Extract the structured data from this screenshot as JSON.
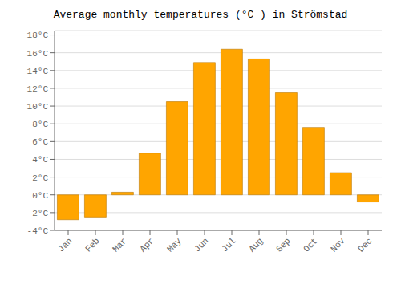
{
  "chart_data": {
    "type": "bar",
    "title": "Average monthly temperatures (°C ) in Strömstad",
    "categories": [
      "Jan",
      "Feb",
      "Mar",
      "Apr",
      "May",
      "Jun",
      "Jul",
      "Aug",
      "Sep",
      "Oct",
      "Nov",
      "Dec"
    ],
    "values": [
      -2.8,
      -2.5,
      0.3,
      4.7,
      10.5,
      14.9,
      16.4,
      15.3,
      11.5,
      7.6,
      2.5,
      -0.8
    ],
    "color": "#FFA500",
    "ylim": [
      -4,
      18.5
    ],
    "yticks": [
      {
        "value": -4,
        "label": "-4°C"
      },
      {
        "value": -2,
        "label": "-2°C"
      },
      {
        "value": 0,
        "label": "0°C"
      },
      {
        "value": 2,
        "label": "2°C"
      },
      {
        "value": 4,
        "label": "4°C"
      },
      {
        "value": 6,
        "label": "6°C"
      },
      {
        "value": 8,
        "label": "8°C"
      },
      {
        "value": 10,
        "label": "10°C"
      },
      {
        "value": 12,
        "label": "12°C"
      },
      {
        "value": 14,
        "label": "14°C"
      },
      {
        "value": 16,
        "label": "16°C"
      },
      {
        "value": 18,
        "label": "18°C"
      }
    ],
    "grid": true
  }
}
